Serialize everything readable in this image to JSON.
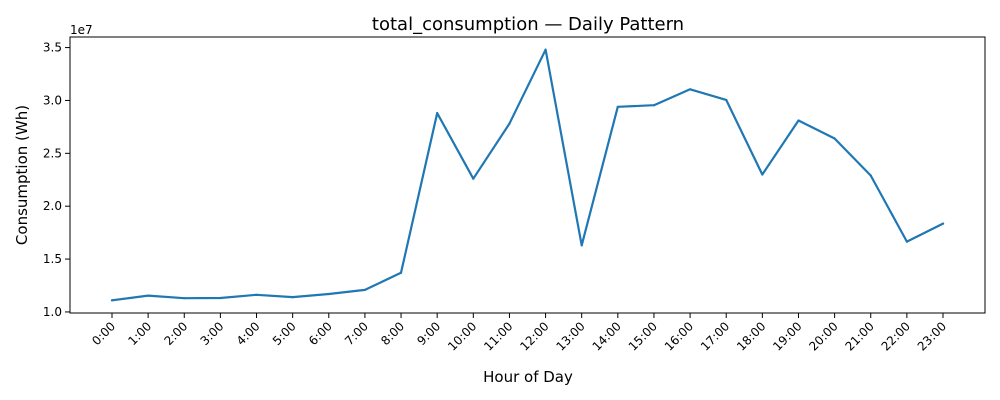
{
  "chart_data": {
    "type": "line",
    "title": "total_consumption — Daily Pattern",
    "xlabel": "Hour of Day",
    "ylabel": "Consumption (Wh)",
    "y_offset_label": "1e7",
    "categories": [
      "0:00",
      "1:00",
      "2:00",
      "3:00",
      "4:00",
      "5:00",
      "6:00",
      "7:00",
      "8:00",
      "9:00",
      "10:00",
      "11:00",
      "12:00",
      "13:00",
      "14:00",
      "15:00",
      "16:00",
      "17:00",
      "18:00",
      "19:00",
      "20:00",
      "21:00",
      "22:00",
      "23:00"
    ],
    "series": [
      {
        "values": [
          11100000,
          11550000,
          11300000,
          11320000,
          11620000,
          11400000,
          11700000,
          12080000,
          13700000,
          28800000,
          22600000,
          27800000,
          34800000,
          16300000,
          29400000,
          29550000,
          31050000,
          30050000,
          23000000,
          28100000,
          26400000,
          22900000,
          16650000,
          18350000
        ],
        "color": "#1f77b4"
      }
    ],
    "yticks": [
      10000000,
      15000000,
      20000000,
      25000000,
      30000000,
      35000000
    ],
    "ytick_labels": [
      "1.0",
      "1.5",
      "2.0",
      "2.5",
      "3.0",
      "3.5"
    ],
    "ylim": [
      9900000,
      36000000
    ],
    "grid": false,
    "legend": "none"
  }
}
